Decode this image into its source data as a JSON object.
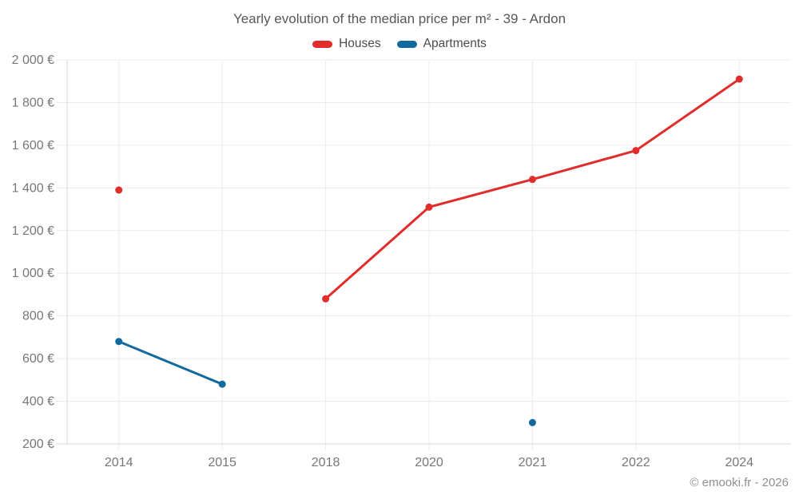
{
  "page": {
    "watermark": "© emooki.fr - 2026"
  },
  "chart_data": {
    "type": "line",
    "title": "Yearly evolution of the median price per m² - 39 - Ardon",
    "xlabel": "",
    "ylabel": "",
    "categories": [
      "2014",
      "2015",
      "2018",
      "2020",
      "2021",
      "2022",
      "2024"
    ],
    "series": [
      {
        "name": "Houses",
        "color": "#e02c2a",
        "values": [
          1390,
          null,
          880,
          1310,
          1440,
          1575,
          1910
        ]
      },
      {
        "name": "Apartments",
        "color": "#12699e",
        "values": [
          680,
          480,
          null,
          null,
          300,
          null,
          null
        ]
      }
    ],
    "ylim": [
      200,
      2000
    ],
    "y_ticks": [
      200,
      400,
      600,
      800,
      1000,
      1200,
      1400,
      1600,
      1800,
      2000
    ],
    "y_tick_labels": [
      "200 €",
      "400 €",
      "600 €",
      "800 €",
      "1 000 €",
      "1 200 €",
      "1 400 €",
      "1 600 €",
      "1 800 €",
      "2 000 €"
    ],
    "grid": true,
    "legend_position": "top",
    "currency": "€",
    "gap_policy": "missing years create gaps; isolated points drawn as dots"
  },
  "colors": {
    "gridline": "#ececec",
    "axis_line": "#d4d4d4",
    "tick_label": "#76777a",
    "title_text": "#56575a",
    "legend_text": "#4b4c4e",
    "watermark_text": "#8d9093"
  }
}
